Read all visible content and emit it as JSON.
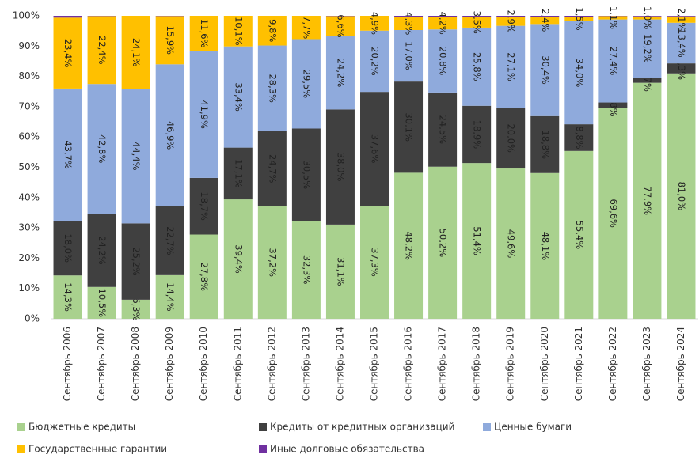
{
  "chart_data": {
    "type": "stacked_bar",
    "categories": [
      "Сентябрь 2006",
      "Сентябрь 2007",
      "Сентябрь 2008",
      "Сентябрь 2009",
      "Сентябрь 2010",
      "Сентябрь 2011",
      "Сентябрь 2012",
      "Сентябрь 2013",
      "Сентябрь 2014",
      "Сентябрь 2015",
      "Сентябрь 2016",
      "Сентябрь 2017",
      "Сентябрь 2018",
      "Сентябрь 2019",
      "Сентябрь 2020",
      "Сентябрь 2021",
      "Сентябрь 2022",
      "Сентябрь 2023",
      "Сентябрь 2024"
    ],
    "series": [
      {
        "name": "Бюджетные кредиты",
        "color": "#a9d18e",
        "values": [
          14.3,
          10.5,
          6.3,
          14.4,
          27.8,
          39.4,
          37.2,
          32.3,
          31.1,
          37.3,
          48.2,
          50.2,
          51.4,
          49.6,
          48.1,
          55.4,
          69.6,
          77.9,
          81.0
        ],
        "value_labels": [
          "14,3%",
          "10,5%",
          "6,3%",
          "14,4%",
          "27,8%",
          "39,4%",
          "37,2%",
          "32,3%",
          "31,1%",
          "37,3%",
          "48,2%",
          "50,2%",
          "51,4%",
          "49,6%",
          "48,1%",
          "55,4%",
          "69,6%",
          "77,9%",
          "81,0%"
        ]
      },
      {
        "name": "Кредиты от кредитных организаций",
        "color": "#404040",
        "values": [
          18.0,
          24.2,
          25.2,
          22.7,
          18.7,
          17.1,
          24.7,
          30.5,
          38.0,
          37.6,
          30.1,
          24.5,
          18.9,
          20.0,
          18.8,
          8.8,
          1.8,
          1.7,
          3.3
        ],
        "value_labels": [
          "18,0%",
          "24,2%",
          "25,2%",
          "22,7%",
          "18,7%",
          "17,1%",
          "24,7%",
          "30,5%",
          "38,0%",
          "37,6%",
          "30,1%",
          "24,5%",
          "18,9%",
          "20,0%",
          "18,8%",
          "8,8%",
          "1,8%",
          "1,7%",
          "3,3%"
        ]
      },
      {
        "name": "Ценные бумаги",
        "color": "#8faadc",
        "values": [
          43.7,
          42.8,
          44.4,
          46.9,
          41.9,
          33.4,
          28.3,
          29.5,
          24.2,
          20.2,
          17.0,
          20.8,
          25.8,
          27.1,
          30.4,
          34.0,
          27.4,
          19.2,
          13.4
        ],
        "value_labels": [
          "43,7%",
          "42,8%",
          "44,4%",
          "46,9%",
          "41,9%",
          "33,4%",
          "28,3%",
          "29,5%",
          "24,2%",
          "20,2%",
          "17,0%",
          "20,8%",
          "25,8%",
          "27,1%",
          "30,4%",
          "34,0%",
          "27,4%",
          "19,2%",
          "13,4%"
        ]
      },
      {
        "name": "Государственные гарантии",
        "color": "#ffc000",
        "values": [
          23.4,
          22.4,
          24.1,
          15.9,
          11.6,
          10.1,
          9.8,
          7.7,
          6.6,
          4.9,
          4.3,
          4.2,
          3.5,
          2.9,
          2.4,
          1.5,
          1.1,
          1.0,
          2.1
        ],
        "value_labels": [
          "23,4%",
          "22,4%",
          "24,1%",
          "15,9%",
          "11,6%",
          "10,1%",
          "9,8%",
          "7,7%",
          "6,6%",
          "4,9%",
          "4,3%",
          "4,2%",
          "3,5%",
          "2,9%",
          "2,4%",
          "1,5%",
          "1,1%",
          "1,0%",
          "2,1%"
        ]
      },
      {
        "name": "Иные долговые обязательства",
        "color": "#7030a0",
        "values": [
          0.6,
          0.1,
          0,
          0.1,
          0,
          0,
          0,
          0,
          0.1,
          0,
          0.4,
          0.3,
          0.4,
          0.4,
          0.3,
          0.3,
          0.1,
          0.2,
          0.2
        ]
      }
    ],
    "ylim": [
      0,
      100
    ],
    "yticks": [
      {
        "value": 0,
        "label": "0%"
      },
      {
        "value": 10,
        "label": "10%"
      },
      {
        "value": 20,
        "label": "20%"
      },
      {
        "value": 30,
        "label": "30%"
      },
      {
        "value": 40,
        "label": "40%"
      },
      {
        "value": 50,
        "label": "50%"
      },
      {
        "value": 60,
        "label": "60%"
      },
      {
        "value": 70,
        "label": "70%"
      },
      {
        "value": 80,
        "label": "80%"
      },
      {
        "value": 90,
        "label": "90%"
      },
      {
        "value": 100,
        "label": "100%"
      }
    ],
    "grid": false
  }
}
